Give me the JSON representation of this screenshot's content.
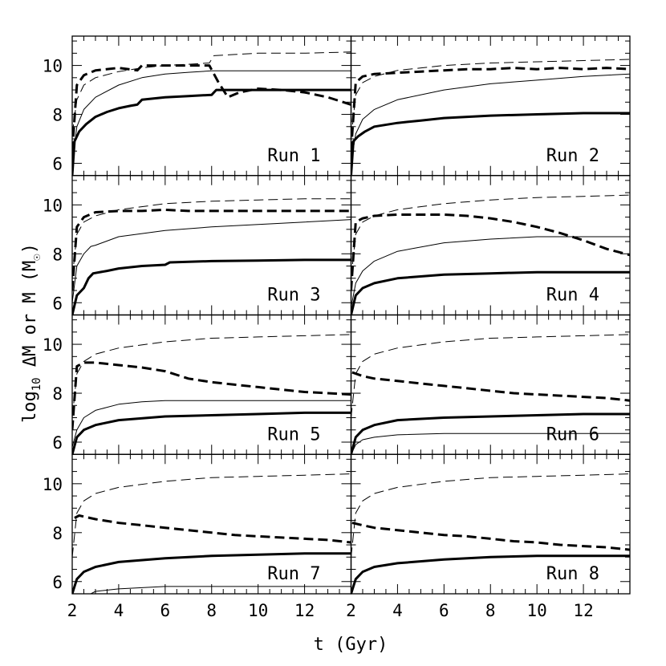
{
  "chart_data": {
    "type": "line",
    "layout": "4 rows x 2 columns of panels sharing axes",
    "xlabel": "t (Gyr)",
    "ylabel": "log10 ΔM or M (M☉)",
    "ylabel_parts": {
      "prefix": "log",
      "sub": "10",
      "suffix": " ΔM or M (M",
      "sun": "☉",
      "close": ")"
    },
    "xlim": [
      2,
      14
    ],
    "ylim": [
      5.5,
      11.2
    ],
    "x_ticks": [
      2,
      4,
      6,
      8,
      10,
      12
    ],
    "y_ticks": [
      6,
      8,
      10
    ],
    "line_styles": {
      "thick_solid": "thick solid",
      "thin_solid": "thin solid",
      "thick_dashed": "thick dashed",
      "thin_dashed": "thin dashed"
    },
    "panels": [
      {
        "label": "Run 1",
        "series": [
          {
            "style": "thin_dashed",
            "x": [
              2,
              2.2,
              2.5,
              3,
              4,
              5,
              6,
              7,
              7.9,
              8.1,
              9,
              10,
              12,
              14
            ],
            "y": [
              7.2,
              8.6,
              9.2,
              9.5,
              9.75,
              9.9,
              10.0,
              10.05,
              10.1,
              10.4,
              10.45,
              10.5,
              10.5,
              10.55
            ]
          },
          {
            "style": "thick_dashed",
            "x": [
              2,
              2.2,
              2.5,
              3,
              4,
              4.8,
              5,
              6,
              7,
              7.9,
              8.3,
              8.7,
              9.2,
              10,
              11,
              12,
              13,
              14
            ],
            "y": [
              6.5,
              9.2,
              9.6,
              9.8,
              9.9,
              9.8,
              10.0,
              10.0,
              10.0,
              10.0,
              9.3,
              8.7,
              8.9,
              9.05,
              9.0,
              8.9,
              8.7,
              8.4
            ]
          },
          {
            "style": "thin_solid",
            "x": [
              2,
              2.2,
              2.5,
              3,
              4,
              5,
              6,
              7,
              8,
              9,
              14
            ],
            "y": [
              6.0,
              7.5,
              8.2,
              8.7,
              9.2,
              9.5,
              9.65,
              9.72,
              9.78,
              9.78,
              9.78
            ]
          },
          {
            "style": "thick_solid",
            "x": [
              2,
              2.1,
              2.3,
              2.6,
              3,
              3.5,
              4,
              4.5,
              4.8,
              5,
              6,
              7,
              8,
              8.2,
              9,
              14
            ],
            "y": [
              5.5,
              6.9,
              7.3,
              7.6,
              7.9,
              8.1,
              8.25,
              8.35,
              8.4,
              8.6,
              8.7,
              8.75,
              8.8,
              9.0,
              9.0,
              9.0
            ]
          }
        ]
      },
      {
        "label": "Run 2",
        "series": [
          {
            "style": "thin_dashed",
            "x": [
              2,
              2.2,
              2.5,
              3,
              4,
              6,
              8,
              10,
              12,
              14
            ],
            "y": [
              7.0,
              8.8,
              9.3,
              9.55,
              9.8,
              10.0,
              10.1,
              10.15,
              10.2,
              10.25
            ]
          },
          {
            "style": "thick_dashed",
            "x": [
              2,
              2.2,
              2.5,
              3,
              4,
              5,
              6,
              7,
              8,
              9,
              10,
              11,
              12,
              13,
              14
            ],
            "y": [
              6.5,
              9.3,
              9.55,
              9.65,
              9.7,
              9.75,
              9.8,
              9.85,
              9.85,
              9.9,
              9.85,
              9.9,
              9.85,
              9.9,
              9.85
            ]
          },
          {
            "style": "thin_solid",
            "x": [
              2,
              2.2,
              2.5,
              3,
              4,
              6,
              8,
              10,
              12,
              14
            ],
            "y": [
              6.0,
              7.2,
              7.8,
              8.2,
              8.6,
              9.0,
              9.25,
              9.4,
              9.55,
              9.65
            ]
          },
          {
            "style": "thick_solid",
            "x": [
              2,
              2.1,
              2.3,
              2.6,
              3,
              4,
              5,
              6,
              8,
              10,
              12,
              14
            ],
            "y": [
              5.5,
              6.9,
              7.1,
              7.3,
              7.5,
              7.65,
              7.75,
              7.85,
              7.95,
              8.0,
              8.05,
              8.05
            ]
          }
        ]
      },
      {
        "label": "Run 3",
        "series": [
          {
            "style": "thin_dashed",
            "x": [
              2,
              2.2,
              2.5,
              3,
              4,
              6,
              8,
              10,
              12,
              14
            ],
            "y": [
              7.0,
              8.8,
              9.3,
              9.55,
              9.8,
              10.05,
              10.15,
              10.2,
              10.25,
              10.25
            ]
          },
          {
            "style": "thick_dashed",
            "x": [
              2,
              2.2,
              2.5,
              3,
              4,
              5,
              6,
              7,
              8,
              9,
              10,
              11,
              12,
              13,
              14
            ],
            "y": [
              6.5,
              9.1,
              9.5,
              9.7,
              9.75,
              9.75,
              9.8,
              9.75,
              9.75,
              9.75,
              9.75,
              9.75,
              9.75,
              9.75,
              9.75
            ]
          },
          {
            "style": "thin_solid",
            "x": [
              2,
              2.2,
              2.5,
              2.8,
              3,
              4,
              6,
              8,
              10,
              12,
              14
            ],
            "y": [
              6.0,
              7.5,
              8.0,
              8.3,
              8.35,
              8.7,
              8.95,
              9.1,
              9.2,
              9.3,
              9.4
            ]
          },
          {
            "style": "thick_solid",
            "x": [
              2,
              2.2,
              2.5,
              2.7,
              2.9,
              3.5,
              4,
              5,
              6,
              6.2,
              8,
              10,
              12,
              14
            ],
            "y": [
              5.5,
              6.3,
              6.6,
              7.0,
              7.2,
              7.3,
              7.4,
              7.5,
              7.55,
              7.65,
              7.7,
              7.72,
              7.75,
              7.75
            ]
          }
        ]
      },
      {
        "label": "Run 4",
        "series": [
          {
            "style": "thin_dashed",
            "x": [
              2,
              2.2,
              2.5,
              3,
              4,
              6,
              8,
              10,
              12,
              14
            ],
            "y": [
              7.0,
              8.8,
              9.3,
              9.55,
              9.8,
              10.05,
              10.2,
              10.3,
              10.35,
              10.4
            ]
          },
          {
            "style": "thick_dashed",
            "x": [
              2,
              2.2,
              2.5,
              3,
              4,
              5,
              6,
              7,
              8,
              9,
              10,
              11,
              12,
              13,
              14
            ],
            "y": [
              6.5,
              9.3,
              9.45,
              9.55,
              9.6,
              9.6,
              9.6,
              9.55,
              9.45,
              9.3,
              9.1,
              8.85,
              8.55,
              8.2,
              7.95
            ]
          },
          {
            "style": "thin_solid",
            "x": [
              2,
              2.2,
              2.5,
              3,
              4,
              6,
              8,
              10,
              12,
              14
            ],
            "y": [
              5.8,
              6.8,
              7.3,
              7.7,
              8.1,
              8.45,
              8.6,
              8.7,
              8.7,
              8.7
            ]
          },
          {
            "style": "thick_solid",
            "x": [
              2,
              2.2,
              2.5,
              3,
              4,
              6,
              8,
              10,
              12,
              14
            ],
            "y": [
              5.5,
              6.3,
              6.6,
              6.8,
              7.0,
              7.15,
              7.2,
              7.25,
              7.25,
              7.25
            ]
          }
        ]
      },
      {
        "label": "Run 5",
        "series": [
          {
            "style": "thin_dashed",
            "x": [
              2,
              2.2,
              2.5,
              3,
              4,
              6,
              8,
              10,
              12,
              14
            ],
            "y": [
              7.0,
              8.8,
              9.3,
              9.6,
              9.85,
              10.1,
              10.25,
              10.3,
              10.35,
              10.4
            ]
          },
          {
            "style": "thick_dashed",
            "x": [
              2,
              2.2,
              2.5,
              3,
              4,
              5,
              6,
              7,
              8,
              9,
              10,
              11,
              12,
              13,
              14
            ],
            "y": [
              6.5,
              9.1,
              9.25,
              9.25,
              9.15,
              9.05,
              8.9,
              8.6,
              8.45,
              8.35,
              8.25,
              8.15,
              8.05,
              8.0,
              7.95
            ]
          },
          {
            "style": "thin_solid",
            "x": [
              2,
              2.2,
              2.5,
              3,
              4,
              5,
              6,
              8,
              10,
              14
            ],
            "y": [
              5.8,
              6.5,
              7.0,
              7.3,
              7.55,
              7.65,
              7.7,
              7.7,
              7.7,
              7.7
            ]
          },
          {
            "style": "thick_solid",
            "x": [
              2,
              2.2,
              2.5,
              3,
              4,
              6,
              8,
              10,
              12,
              14
            ],
            "y": [
              5.5,
              6.2,
              6.5,
              6.7,
              6.9,
              7.05,
              7.1,
              7.15,
              7.2,
              7.2
            ]
          }
        ]
      },
      {
        "label": "Run 6",
        "series": [
          {
            "style": "thin_dashed",
            "x": [
              2,
              2.2,
              2.5,
              3,
              4,
              6,
              8,
              10,
              12,
              14
            ],
            "y": [
              7.0,
              8.8,
              9.3,
              9.6,
              9.85,
              10.1,
              10.25,
              10.3,
              10.35,
              10.4
            ]
          },
          {
            "style": "thick_dashed",
            "x": [
              2.05,
              2.5,
              3,
              4,
              5,
              6,
              7,
              8,
              9,
              10,
              11,
              12,
              13,
              14
            ],
            "y": [
              8.85,
              8.7,
              8.6,
              8.5,
              8.4,
              8.3,
              8.2,
              8.1,
              8.0,
              7.95,
              7.9,
              7.85,
              7.8,
              7.7
            ]
          },
          {
            "style": "thin_solid",
            "x": [
              2,
              2.2,
              2.5,
              3,
              4,
              6,
              8,
              10,
              14
            ],
            "y": [
              5.5,
              5.9,
              6.1,
              6.2,
              6.3,
              6.35,
              6.35,
              6.35,
              6.35
            ]
          },
          {
            "style": "thick_solid",
            "x": [
              2,
              2.2,
              2.5,
              3,
              4,
              6,
              8,
              10,
              12,
              14
            ],
            "y": [
              5.5,
              6.2,
              6.5,
              6.7,
              6.9,
              7.0,
              7.05,
              7.1,
              7.15,
              7.15
            ]
          }
        ]
      },
      {
        "label": "Run 7",
        "series": [
          {
            "style": "thin_dashed",
            "x": [
              2,
              2.2,
              2.5,
              3,
              4,
              6,
              8,
              10,
              12,
              14
            ],
            "y": [
              7.0,
              8.8,
              9.3,
              9.6,
              9.85,
              10.1,
              10.25,
              10.3,
              10.35,
              10.4
            ]
          },
          {
            "style": "thick_dashed",
            "x": [
              2.1,
              2.3,
              3,
              4,
              5,
              6,
              7,
              8,
              9,
              10,
              11,
              12,
              13,
              14
            ],
            "y": [
              8.6,
              8.7,
              8.55,
              8.4,
              8.3,
              8.2,
              8.1,
              8.0,
              7.9,
              7.85,
              7.8,
              7.75,
              7.7,
              7.6
            ]
          },
          {
            "style": "thin_solid",
            "x": [
              2.8,
              3,
              4,
              5,
              6,
              8,
              10,
              14
            ],
            "y": [
              5.5,
              5.6,
              5.7,
              5.75,
              5.8,
              5.8,
              5.8,
              5.8
            ]
          },
          {
            "style": "thick_solid",
            "x": [
              2,
              2.2,
              2.5,
              3,
              4,
              6,
              8,
              10,
              12,
              14
            ],
            "y": [
              5.5,
              6.1,
              6.4,
              6.6,
              6.8,
              6.95,
              7.05,
              7.1,
              7.15,
              7.15
            ]
          }
        ]
      },
      {
        "label": "Run 8",
        "series": [
          {
            "style": "thin_dashed",
            "x": [
              2,
              2.2,
              2.5,
              3,
              4,
              6,
              8,
              10,
              12,
              14
            ],
            "y": [
              7.0,
              8.8,
              9.3,
              9.6,
              9.85,
              10.1,
              10.25,
              10.3,
              10.35,
              10.4
            ]
          },
          {
            "style": "thick_dashed",
            "x": [
              2.05,
              2.5,
              3,
              4,
              5,
              6,
              7,
              8,
              9,
              10,
              11,
              12,
              13,
              14
            ],
            "y": [
              8.4,
              8.3,
              8.2,
              8.1,
              8.0,
              7.9,
              7.85,
              7.75,
              7.65,
              7.6,
              7.5,
              7.45,
              7.4,
              7.3
            ]
          },
          {
            "style": "thick_solid",
            "x": [
              2,
              2.2,
              2.5,
              3,
              4,
              6,
              8,
              10,
              12,
              14
            ],
            "y": [
              5.5,
              6.1,
              6.4,
              6.6,
              6.75,
              6.9,
              7.0,
              7.05,
              7.05,
              7.05
            ]
          }
        ]
      }
    ]
  }
}
